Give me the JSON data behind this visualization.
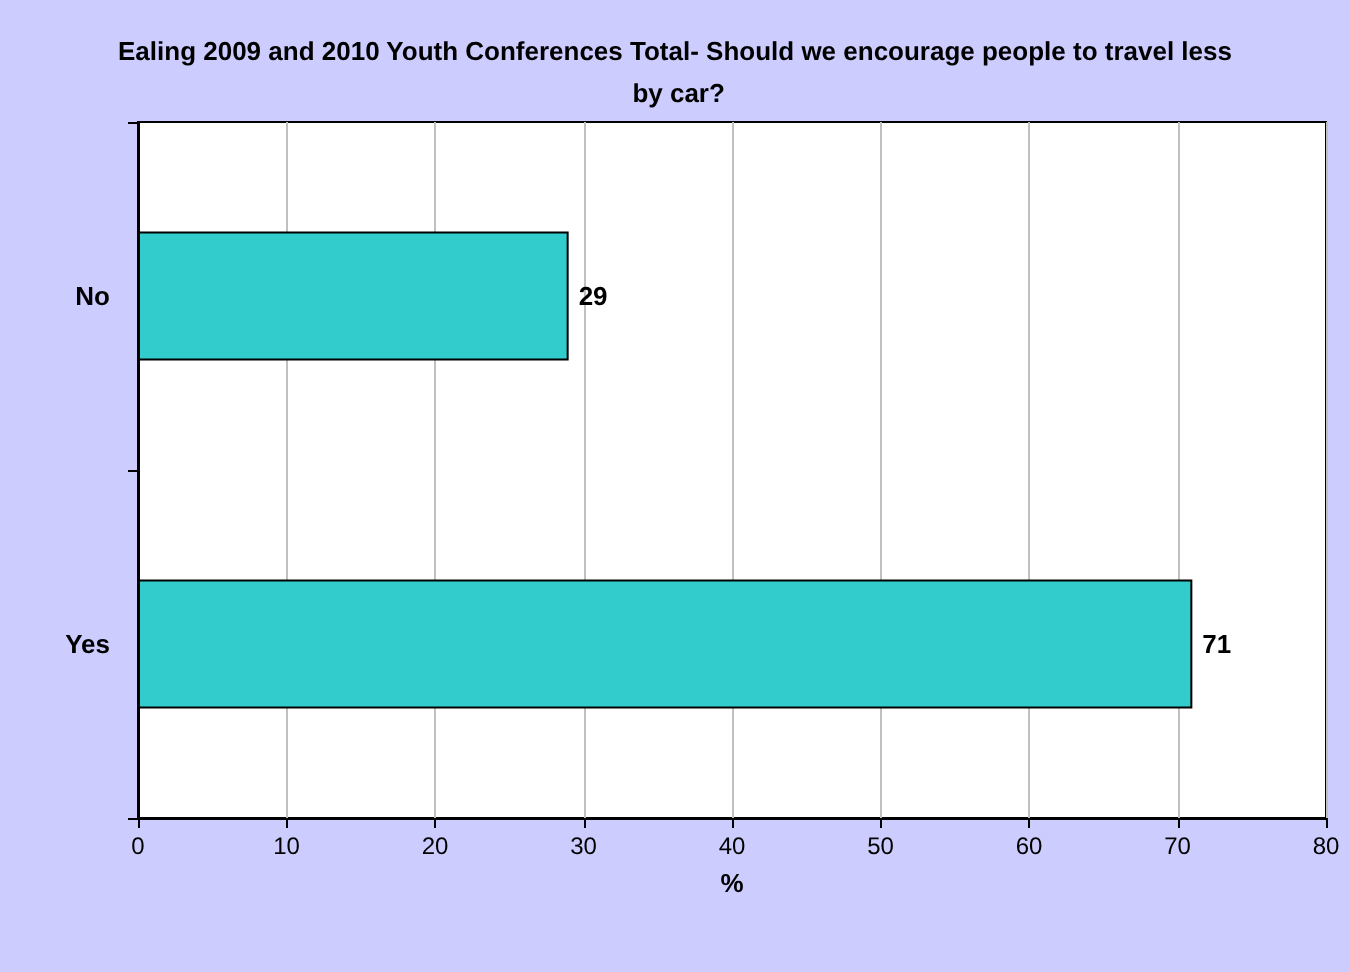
{
  "chart_data": {
    "type": "bar",
    "orientation": "horizontal",
    "title": "Ealing 2009 and 2010 Youth Conferences Total- Should we encourage people to travel less by car?",
    "xlabel": "%",
    "categories": [
      "No",
      "Yes"
    ],
    "values": [
      29,
      71
    ],
    "color": "#33cccc",
    "xlim": [
      0,
      80
    ],
    "xticks": [
      0,
      10,
      20,
      30,
      40,
      50,
      60,
      70,
      80
    ],
    "grid": "x",
    "data_labels": true
  }
}
